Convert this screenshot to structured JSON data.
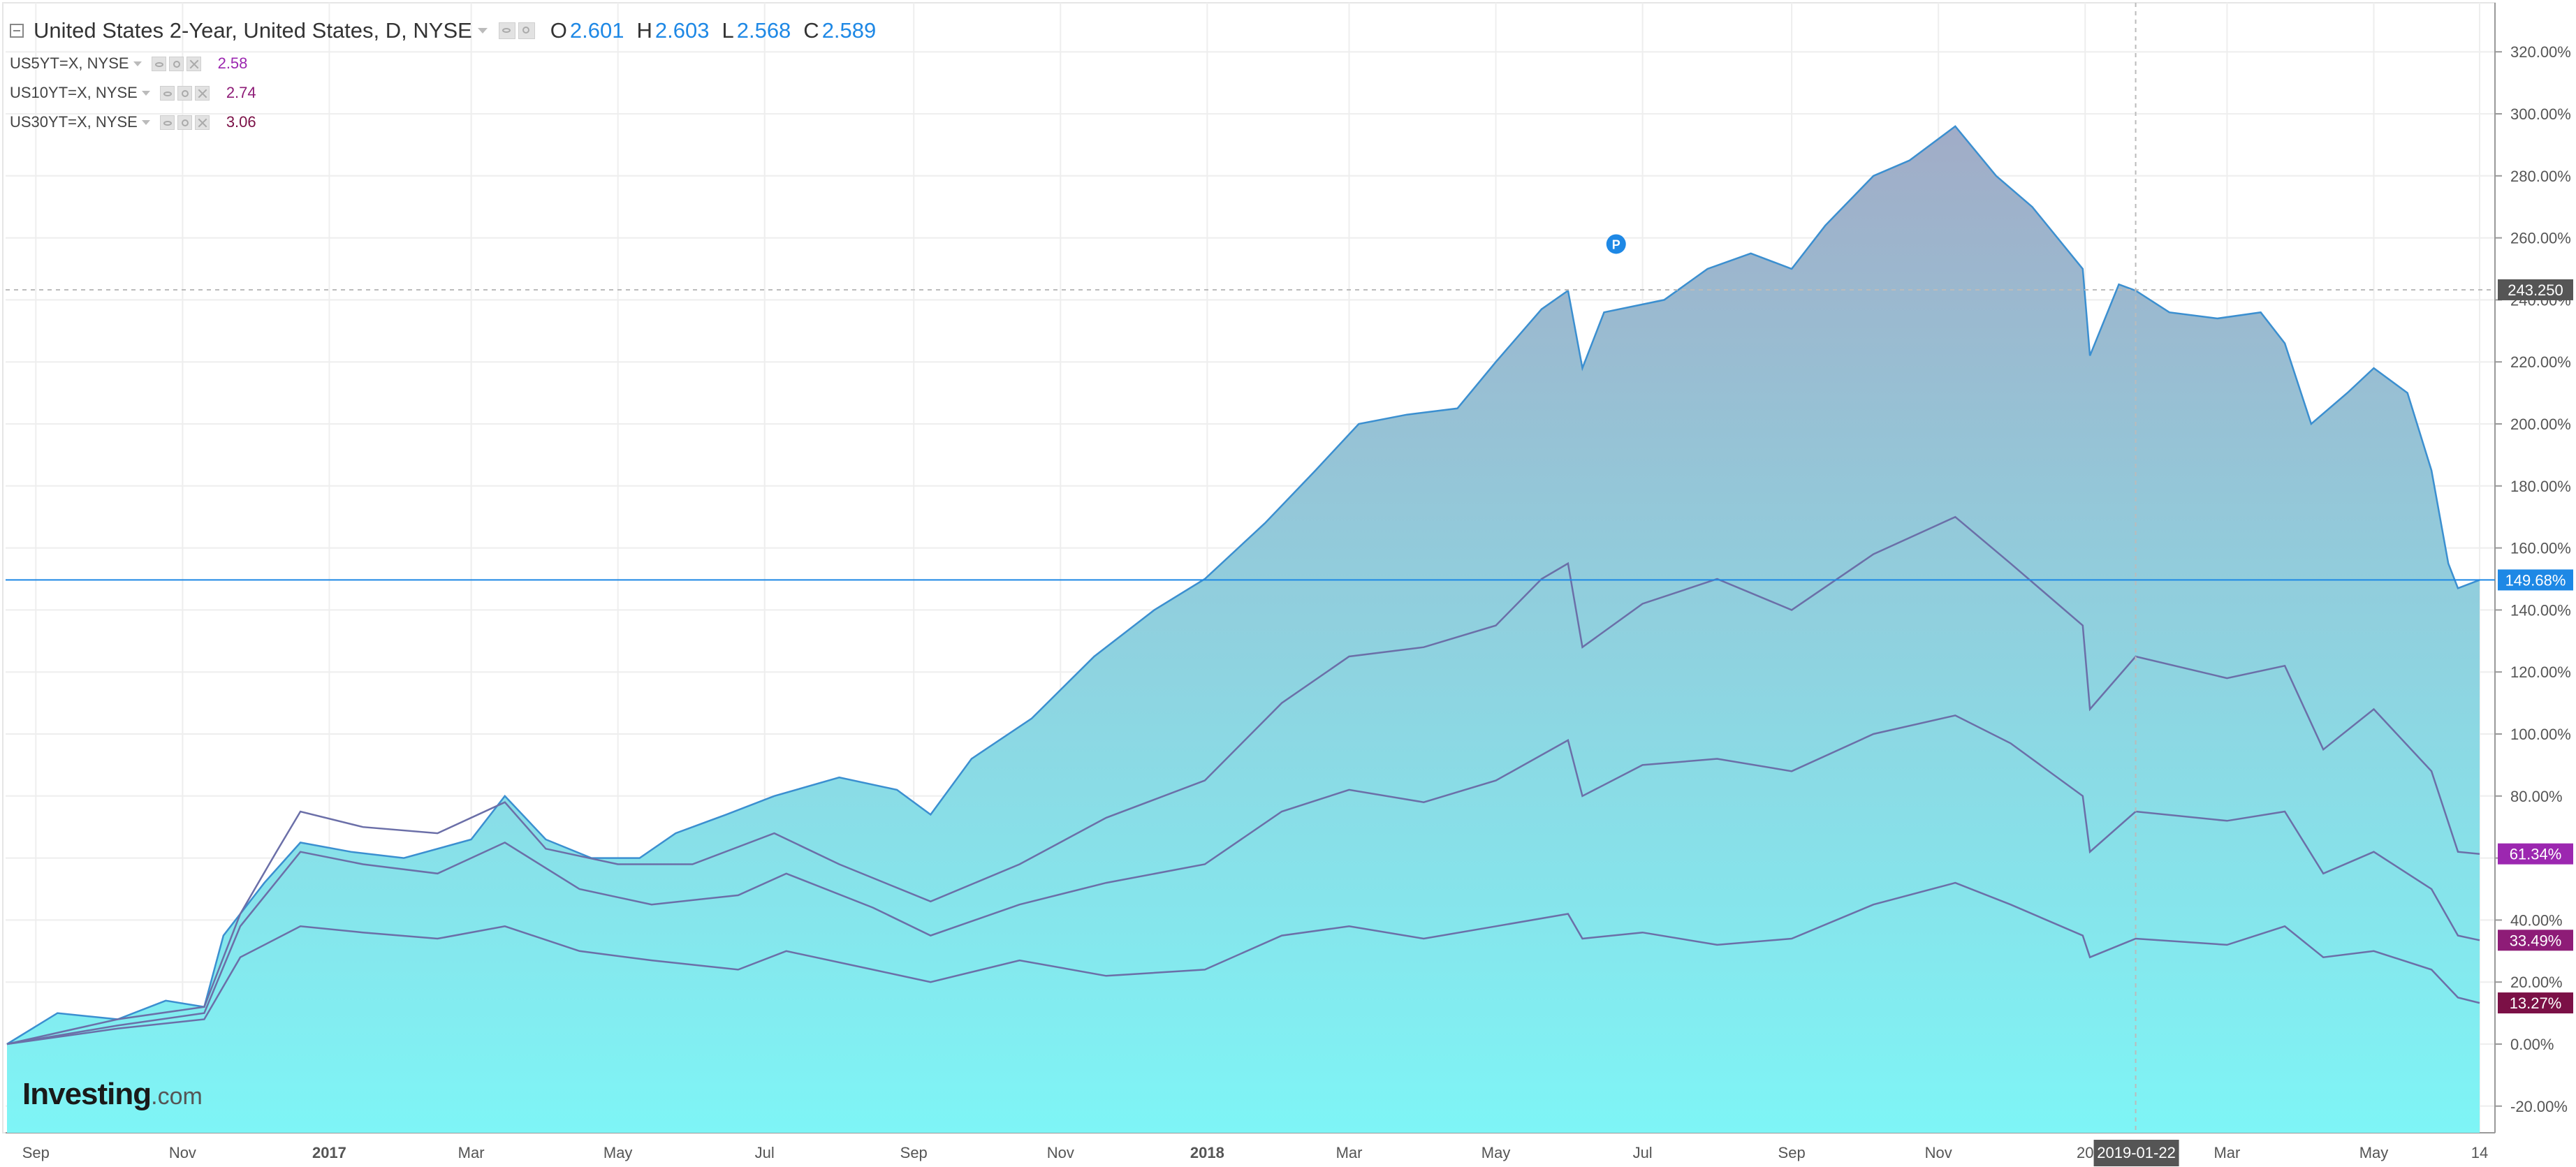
{
  "legend": {
    "main_title": "United States 2-Year, United States, D, NYSE",
    "ohlc": {
      "open_label": "O",
      "open": "2.601",
      "high_label": "H",
      "high": "2.603",
      "low_label": "L",
      "low": "2.568",
      "close_label": "C",
      "close": "2.589"
    },
    "studies": [
      {
        "name": "US5YT=X, NYSE",
        "value": "2.58",
        "color": "#9c27b0"
      },
      {
        "name": "US10YT=X, NYSE",
        "value": "2.74",
        "color": "#8e1c77"
      },
      {
        "name": "US30YT=X, NYSE",
        "value": "3.06",
        "color": "#7b1046"
      }
    ]
  },
  "branding": {
    "logo_main": "Investing",
    "logo_suffix": ".com"
  },
  "colors": {
    "area_top": "#a1acc7",
    "area_bottom": "#7ef5f6",
    "area_line": "#3b8fd0",
    "compare_line": "#6b6fa8",
    "axis_text": "#555555",
    "grid": "#eeeeee",
    "price_badge": "#1e88e5",
    "crosshair_badge": "#555555",
    "badge_5y": "#9c27b0",
    "badge_10y": "#8e1c77",
    "badge_30y": "#7b1046"
  },
  "chart_data": {
    "type": "area",
    "title": "United States 2-Year, United States, D, NYSE",
    "x_tick_labels": [
      "Sep",
      "Nov",
      "2017",
      "Mar",
      "May",
      "Jul",
      "Sep",
      "Nov",
      "2018",
      "Mar",
      "May",
      "Jul",
      "Sep",
      "Nov",
      "20",
      "Mar",
      "May",
      "14"
    ],
    "y_tick_labels": [
      "320.00%",
      "300.00%",
      "280.00%",
      "260.00%",
      "240.00%",
      "220.00%",
      "200.00%",
      "180.00%",
      "160.00%",
      "140.00%",
      "120.00%",
      "100.00%",
      "80.00%",
      "60.00%",
      "40.00%",
      "20.00%",
      "0.00%",
      "-20.00%"
    ],
    "ylim": [
      -28,
      337
    ],
    "crosshair": {
      "date_label": "2019-01-22",
      "price_label": "243.250"
    },
    "series": [
      {
        "name": "United States 2-Year",
        "style": "area",
        "last_label": "149.68%",
        "points": [
          [
            "2016-08-20",
            0
          ],
          [
            "2016-09-10",
            10
          ],
          [
            "2016-10-05",
            8
          ],
          [
            "2016-10-25",
            14
          ],
          [
            "2016-11-10",
            12
          ],
          [
            "2016-11-18",
            35
          ],
          [
            "2016-12-05",
            52
          ],
          [
            "2016-12-20",
            65
          ],
          [
            "2017-01-10",
            62
          ],
          [
            "2017-02-01",
            60
          ],
          [
            "2017-03-01",
            66
          ],
          [
            "2017-03-15",
            80
          ],
          [
            "2017-04-01",
            66
          ],
          [
            "2017-04-20",
            60
          ],
          [
            "2017-05-10",
            60
          ],
          [
            "2017-05-25",
            68
          ],
          [
            "2017-06-15",
            74
          ],
          [
            "2017-07-05",
            80
          ],
          [
            "2017-08-01",
            86
          ],
          [
            "2017-08-25",
            82
          ],
          [
            "2017-09-08",
            74
          ],
          [
            "2017-09-25",
            92
          ],
          [
            "2017-10-20",
            105
          ],
          [
            "2017-11-15",
            125
          ],
          [
            "2017-12-10",
            140
          ],
          [
            "2017-12-31",
            150
          ],
          [
            "2018-01-25",
            168
          ],
          [
            "2018-02-15",
            185
          ],
          [
            "2018-03-05",
            200
          ],
          [
            "2018-03-25",
            203
          ],
          [
            "2018-04-15",
            205
          ],
          [
            "2018-05-01",
            220
          ],
          [
            "2018-05-20",
            237
          ],
          [
            "2018-05-31",
            243
          ],
          [
            "2018-06-06",
            218
          ],
          [
            "2018-06-15",
            236
          ],
          [
            "2018-07-10",
            240
          ],
          [
            "2018-07-28",
            250
          ],
          [
            "2018-08-15",
            255
          ],
          [
            "2018-09-01",
            250
          ],
          [
            "2018-09-15",
            264
          ],
          [
            "2018-10-05",
            280
          ],
          [
            "2018-10-20",
            285
          ],
          [
            "2018-11-08",
            296
          ],
          [
            "2018-11-25",
            280
          ],
          [
            "2018-12-10",
            270
          ],
          [
            "2018-12-31",
            250
          ],
          [
            "2019-01-03",
            222
          ],
          [
            "2019-01-15",
            245
          ],
          [
            "2019-01-22",
            243
          ],
          [
            "2019-02-05",
            236
          ],
          [
            "2019-02-25",
            234
          ],
          [
            "2019-03-15",
            236
          ],
          [
            "2019-03-25",
            226
          ],
          [
            "2019-04-05",
            200
          ],
          [
            "2019-04-20",
            210
          ],
          [
            "2019-05-01",
            218
          ],
          [
            "2019-05-15",
            210
          ],
          [
            "2019-05-25",
            185
          ],
          [
            "2019-06-01",
            155
          ],
          [
            "2019-06-05",
            147
          ],
          [
            "2019-06-14",
            149.68
          ]
        ]
      },
      {
        "name": "US5YT=X, NYSE",
        "style": "line",
        "last_label": "61.34%",
        "points": [
          [
            "2016-08-20",
            0
          ],
          [
            "2016-10-05",
            8
          ],
          [
            "2016-11-10",
            12
          ],
          [
            "2016-11-25",
            42
          ],
          [
            "2016-12-10",
            62
          ],
          [
            "2016-12-20",
            75
          ],
          [
            "2017-01-15",
            70
          ],
          [
            "2017-02-15",
            68
          ],
          [
            "2017-03-15",
            78
          ],
          [
            "2017-04-01",
            63
          ],
          [
            "2017-05-01",
            58
          ],
          [
            "2017-06-01",
            58
          ],
          [
            "2017-07-05",
            68
          ],
          [
            "2017-08-01",
            58
          ],
          [
            "2017-09-08",
            46
          ],
          [
            "2017-10-15",
            58
          ],
          [
            "2017-11-20",
            73
          ],
          [
            "2017-12-31",
            85
          ],
          [
            "2018-02-01",
            110
          ],
          [
            "2018-03-01",
            125
          ],
          [
            "2018-04-01",
            128
          ],
          [
            "2018-05-01",
            135
          ],
          [
            "2018-05-20",
            150
          ],
          [
            "2018-05-31",
            155
          ],
          [
            "2018-06-06",
            128
          ],
          [
            "2018-07-01",
            142
          ],
          [
            "2018-08-01",
            150
          ],
          [
            "2018-09-01",
            140
          ],
          [
            "2018-10-05",
            158
          ],
          [
            "2018-11-08",
            170
          ],
          [
            "2018-12-01",
            155
          ],
          [
            "2018-12-31",
            135
          ],
          [
            "2019-01-03",
            108
          ],
          [
            "2019-01-22",
            125
          ],
          [
            "2019-03-01",
            118
          ],
          [
            "2019-03-25",
            122
          ],
          [
            "2019-04-10",
            95
          ],
          [
            "2019-05-01",
            108
          ],
          [
            "2019-05-25",
            88
          ],
          [
            "2019-06-05",
            62
          ],
          [
            "2019-06-14",
            61.34
          ]
        ]
      },
      {
        "name": "US10YT=X, NYSE",
        "style": "line",
        "last_label": "33.49%",
        "points": [
          [
            "2016-08-20",
            0
          ],
          [
            "2016-10-05",
            6
          ],
          [
            "2016-11-10",
            10
          ],
          [
            "2016-11-25",
            38
          ],
          [
            "2016-12-20",
            62
          ],
          [
            "2017-01-15",
            58
          ],
          [
            "2017-02-15",
            55
          ],
          [
            "2017-03-15",
            65
          ],
          [
            "2017-04-15",
            50
          ],
          [
            "2017-05-15",
            45
          ],
          [
            "2017-06-20",
            48
          ],
          [
            "2017-07-10",
            55
          ],
          [
            "2017-08-15",
            44
          ],
          [
            "2017-09-08",
            35
          ],
          [
            "2017-10-15",
            45
          ],
          [
            "2017-11-20",
            52
          ],
          [
            "2017-12-31",
            58
          ],
          [
            "2018-02-01",
            75
          ],
          [
            "2018-03-01",
            82
          ],
          [
            "2018-04-01",
            78
          ],
          [
            "2018-05-01",
            85
          ],
          [
            "2018-05-31",
            98
          ],
          [
            "2018-06-06",
            80
          ],
          [
            "2018-07-01",
            90
          ],
          [
            "2018-08-01",
            92
          ],
          [
            "2018-09-01",
            88
          ],
          [
            "2018-10-05",
            100
          ],
          [
            "2018-11-08",
            106
          ],
          [
            "2018-12-01",
            97
          ],
          [
            "2018-12-31",
            80
          ],
          [
            "2019-01-03",
            62
          ],
          [
            "2019-01-22",
            75
          ],
          [
            "2019-03-01",
            72
          ],
          [
            "2019-03-25",
            75
          ],
          [
            "2019-04-10",
            55
          ],
          [
            "2019-05-01",
            62
          ],
          [
            "2019-05-25",
            50
          ],
          [
            "2019-06-05",
            35
          ],
          [
            "2019-06-14",
            33.49
          ]
        ]
      },
      {
        "name": "US30YT=X, NYSE",
        "style": "line",
        "last_label": "13.27%",
        "points": [
          [
            "2016-08-20",
            0
          ],
          [
            "2016-10-05",
            5
          ],
          [
            "2016-11-10",
            8
          ],
          [
            "2016-11-25",
            28
          ],
          [
            "2016-12-20",
            38
          ],
          [
            "2017-01-15",
            36
          ],
          [
            "2017-02-15",
            34
          ],
          [
            "2017-03-15",
            38
          ],
          [
            "2017-04-15",
            30
          ],
          [
            "2017-05-15",
            27
          ],
          [
            "2017-06-20",
            24
          ],
          [
            "2017-07-10",
            30
          ],
          [
            "2017-08-15",
            24
          ],
          [
            "2017-09-08",
            20
          ],
          [
            "2017-10-15",
            27
          ],
          [
            "2017-11-20",
            22
          ],
          [
            "2017-12-31",
            24
          ],
          [
            "2018-02-01",
            35
          ],
          [
            "2018-03-01",
            38
          ],
          [
            "2018-04-01",
            34
          ],
          [
            "2018-05-01",
            38
          ],
          [
            "2018-05-31",
            42
          ],
          [
            "2018-06-06",
            34
          ],
          [
            "2018-07-01",
            36
          ],
          [
            "2018-08-01",
            32
          ],
          [
            "2018-09-01",
            34
          ],
          [
            "2018-10-05",
            45
          ],
          [
            "2018-11-08",
            52
          ],
          [
            "2018-12-01",
            45
          ],
          [
            "2018-12-31",
            35
          ],
          [
            "2019-01-03",
            28
          ],
          [
            "2019-01-22",
            34
          ],
          [
            "2019-03-01",
            32
          ],
          [
            "2019-03-25",
            38
          ],
          [
            "2019-04-10",
            28
          ],
          [
            "2019-05-01",
            30
          ],
          [
            "2019-05-25",
            24
          ],
          [
            "2019-06-05",
            15
          ],
          [
            "2019-06-14",
            13.27
          ]
        ]
      }
    ]
  }
}
